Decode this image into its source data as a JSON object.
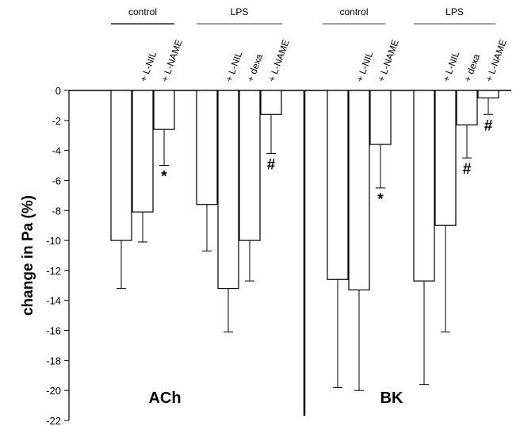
{
  "chart_data": {
    "type": "bar",
    "ylabel": "change in Pa (%)",
    "ylim": [
      -22,
      0
    ],
    "yticks": [
      0,
      -2,
      -4,
      -6,
      -8,
      -10,
      -12,
      -14,
      -16,
      -18,
      -20,
      -22
    ],
    "panels": [
      {
        "label": "ACh",
        "groups": [
          {
            "label": "control",
            "bars": [
              {
                "label": "",
                "value": -10.0,
                "error": 3.2,
                "annotation": ""
              },
              {
                "label": "+ L-NIL",
                "value": -8.1,
                "error": 2.0,
                "annotation": ""
              },
              {
                "label": "+ L-NAME",
                "value": -2.6,
                "error": 2.4,
                "annotation": "*"
              }
            ]
          },
          {
            "label": "LPS",
            "bars": [
              {
                "label": "",
                "value": -7.6,
                "error": 3.1,
                "annotation": ""
              },
              {
                "label": "+ L-NIL",
                "value": -13.2,
                "error": 2.9,
                "annotation": ""
              },
              {
                "label": "+ dexa",
                "value": -10.0,
                "error": 2.7,
                "annotation": ""
              },
              {
                "label": "+ L-NAME",
                "value": -1.6,
                "error": 2.6,
                "annotation": "#"
              }
            ]
          }
        ]
      },
      {
        "label": "BK",
        "groups": [
          {
            "label": "control",
            "bars": [
              {
                "label": "",
                "value": -12.6,
                "error": 7.2,
                "annotation": ""
              },
              {
                "label": "+ L-NIL",
                "value": -13.3,
                "error": 6.7,
                "annotation": ""
              },
              {
                "label": "+ L-NAME",
                "value": -3.6,
                "error": 2.9,
                "annotation": "*"
              }
            ]
          },
          {
            "label": "LPS",
            "bars": [
              {
                "label": "",
                "value": -12.7,
                "error": 6.9,
                "annotation": ""
              },
              {
                "label": "+ L-NIL",
                "value": -9.0,
                "error": 7.1,
                "annotation": ""
              },
              {
                "label": "+ dexa",
                "value": -2.3,
                "error": 2.2,
                "annotation": "#"
              },
              {
                "label": "+ L-NAME",
                "value": -0.5,
                "error": 1.1,
                "annotation": "#"
              }
            ]
          }
        ]
      }
    ]
  }
}
